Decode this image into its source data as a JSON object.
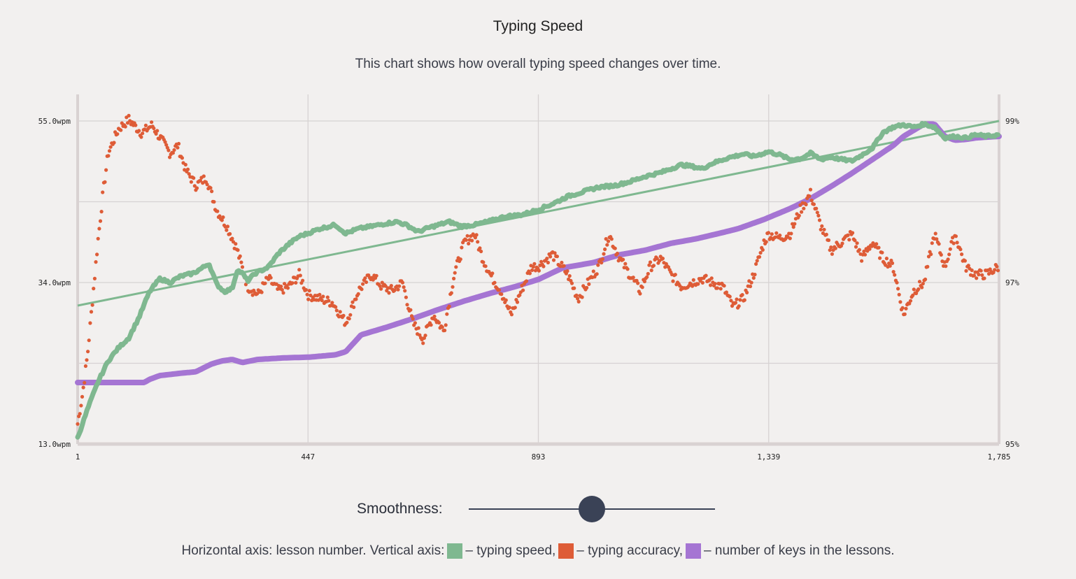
{
  "header": {
    "title": "Typing Speed",
    "subtitle": "This chart shows how overall typing speed changes over time."
  },
  "controls": {
    "smoothness_label": "Smoothness:",
    "smoothness_value": 0.5
  },
  "legend": {
    "prefix": "Horizontal axis: lesson number. Vertical axis:",
    "speed": "– typing speed,",
    "accuracy": "– typing accuracy,",
    "keys": "– number of keys in the lessons."
  },
  "chart_data": {
    "type": "line",
    "x": {
      "min": 1,
      "max": 1785,
      "ticks": [
        "1",
        "447",
        "893",
        "1,339",
        "1,785"
      ],
      "tick_values": [
        1,
        447,
        893,
        1339,
        1785
      ]
    },
    "y_left": {
      "min": 13.0,
      "max": 55.0,
      "ticks": [
        "13.0wpm",
        "34.0wpm",
        "55.0wpm"
      ],
      "tick_values": [
        13,
        34,
        55
      ]
    },
    "y_right": {
      "min": 95,
      "max": 99,
      "ticks": [
        "95%",
        "97%",
        "99%"
      ],
      "tick_values": [
        95,
        97,
        99
      ]
    },
    "grid": true,
    "colors": {
      "speed": "#7fb890",
      "accuracy": "#de5c37",
      "keys": "#a575d3",
      "trend": "#7fb890"
    },
    "series": [
      {
        "key": "speed",
        "axis": "left",
        "points": [
          [
            1,
            13.8
          ],
          [
            20,
            17.5
          ],
          [
            40,
            21
          ],
          [
            60,
            23.8
          ],
          [
            80,
            25.5
          ],
          [
            100,
            26.8
          ],
          [
            120,
            29.5
          ],
          [
            140,
            32.8
          ],
          [
            160,
            34.5
          ],
          [
            180,
            34.0
          ],
          [
            200,
            34.8
          ],
          [
            225,
            35.2
          ],
          [
            245,
            36.0
          ],
          [
            255,
            36.5
          ],
          [
            270,
            33.8
          ],
          [
            285,
            32.8
          ],
          [
            300,
            33.2
          ],
          [
            310,
            35.6
          ],
          [
            320,
            35.2
          ],
          [
            330,
            34.2
          ],
          [
            345,
            35.2
          ],
          [
            370,
            36.0
          ],
          [
            390,
            37.8
          ],
          [
            410,
            39.0
          ],
          [
            430,
            40.0
          ],
          [
            447,
            40.4
          ],
          [
            470,
            41.0
          ],
          [
            500,
            41.5
          ],
          [
            520,
            40.4
          ],
          [
            545,
            41.0
          ],
          [
            570,
            41.3
          ],
          [
            600,
            41.7
          ],
          [
            620,
            41.9
          ],
          [
            640,
            41.4
          ],
          [
            660,
            40.6
          ],
          [
            680,
            41.1
          ],
          [
            700,
            41.5
          ],
          [
            720,
            41.9
          ],
          [
            745,
            41.3
          ],
          [
            770,
            41.5
          ],
          [
            800,
            42.0
          ],
          [
            830,
            42.6
          ],
          [
            860,
            42.8
          ],
          [
            880,
            43.2
          ],
          [
            893,
            43.5
          ],
          [
            920,
            44.2
          ],
          [
            950,
            45.2
          ],
          [
            980,
            45.8
          ],
          [
            1010,
            46.4
          ],
          [
            1040,
            46.6
          ],
          [
            1070,
            47.1
          ],
          [
            1100,
            47.8
          ],
          [
            1130,
            48.3
          ],
          [
            1150,
            48.8
          ],
          [
            1170,
            49.3
          ],
          [
            1190,
            49.1
          ],
          [
            1210,
            48.8
          ],
          [
            1230,
            49.5
          ],
          [
            1260,
            50.2
          ],
          [
            1290,
            50.7
          ],
          [
            1310,
            50.4
          ],
          [
            1339,
            51.0
          ],
          [
            1360,
            50.6
          ],
          [
            1380,
            50.0
          ],
          [
            1400,
            50.1
          ],
          [
            1420,
            50.8
          ],
          [
            1440,
            50.0
          ],
          [
            1460,
            50.3
          ],
          [
            1480,
            50.0
          ],
          [
            1500,
            49.8
          ],
          [
            1520,
            50.6
          ],
          [
            1540,
            51.5
          ],
          [
            1560,
            53.5
          ],
          [
            1580,
            54.2
          ],
          [
            1600,
            54.5
          ],
          [
            1620,
            54.2
          ],
          [
            1640,
            54.6
          ],
          [
            1660,
            54.2
          ],
          [
            1680,
            52.8
          ],
          [
            1700,
            53.0
          ],
          [
            1720,
            52.8
          ],
          [
            1740,
            53.2
          ],
          [
            1760,
            53.0
          ],
          [
            1785,
            53.2
          ]
        ]
      },
      {
        "key": "accuracy",
        "axis": "right",
        "points": [
          [
            1,
            95.25
          ],
          [
            10,
            95.6
          ],
          [
            20,
            96.1
          ],
          [
            30,
            96.8
          ],
          [
            40,
            97.5
          ],
          [
            50,
            98.1
          ],
          [
            60,
            98.6
          ],
          [
            80,
            98.9
          ],
          [
            100,
            99.02
          ],
          [
            110,
            98.95
          ],
          [
            125,
            98.85
          ],
          [
            145,
            98.95
          ],
          [
            165,
            98.75
          ],
          [
            180,
            98.6
          ],
          [
            195,
            98.7
          ],
          [
            210,
            98.4
          ],
          [
            230,
            98.2
          ],
          [
            250,
            98.3
          ],
          [
            270,
            97.9
          ],
          [
            290,
            97.7
          ],
          [
            310,
            97.4
          ],
          [
            330,
            96.95
          ],
          [
            350,
            96.85
          ],
          [
            370,
            97.05
          ],
          [
            390,
            96.9
          ],
          [
            410,
            96.95
          ],
          [
            430,
            97.1
          ],
          [
            447,
            96.85
          ],
          [
            470,
            96.8
          ],
          [
            495,
            96.75
          ],
          [
            520,
            96.5
          ],
          [
            545,
            96.9
          ],
          [
            570,
            97.1
          ],
          [
            590,
            96.95
          ],
          [
            610,
            96.9
          ],
          [
            630,
            97.0
          ],
          [
            650,
            96.5
          ],
          [
            670,
            96.3
          ],
          [
            690,
            96.6
          ],
          [
            710,
            96.4
          ],
          [
            730,
            97.1
          ],
          [
            750,
            97.5
          ],
          [
            770,
            97.6
          ],
          [
            785,
            97.3
          ],
          [
            800,
            97.1
          ],
          [
            820,
            96.9
          ],
          [
            840,
            96.6
          ],
          [
            860,
            96.9
          ],
          [
            880,
            97.2
          ],
          [
            893,
            97.2
          ],
          [
            920,
            97.35
          ],
          [
            950,
            97.1
          ],
          [
            970,
            96.8
          ],
          [
            990,
            97.0
          ],
          [
            1010,
            97.2
          ],
          [
            1030,
            97.6
          ],
          [
            1050,
            97.3
          ],
          [
            1070,
            97.1
          ],
          [
            1090,
            96.9
          ],
          [
            1110,
            97.2
          ],
          [
            1130,
            97.3
          ],
          [
            1150,
            97.1
          ],
          [
            1170,
            96.95
          ],
          [
            1190,
            97.0
          ],
          [
            1210,
            97.05
          ],
          [
            1230,
            97.0
          ],
          [
            1250,
            96.95
          ],
          [
            1270,
            96.7
          ],
          [
            1290,
            96.8
          ],
          [
            1310,
            97.1
          ],
          [
            1330,
            97.5
          ],
          [
            1339,
            97.6
          ],
          [
            1360,
            97.55
          ],
          [
            1380,
            97.6
          ],
          [
            1400,
            97.9
          ],
          [
            1420,
            98.1
          ],
          [
            1440,
            97.7
          ],
          [
            1460,
            97.4
          ],
          [
            1480,
            97.5
          ],
          [
            1500,
            97.6
          ],
          [
            1520,
            97.3
          ],
          [
            1540,
            97.5
          ],
          [
            1560,
            97.3
          ],
          [
            1580,
            97.2
          ],
          [
            1600,
            96.6
          ],
          [
            1620,
            96.9
          ],
          [
            1640,
            97.0
          ],
          [
            1660,
            97.6
          ],
          [
            1680,
            97.2
          ],
          [
            1700,
            97.6
          ],
          [
            1720,
            97.2
          ],
          [
            1740,
            97.1
          ],
          [
            1760,
            97.1
          ],
          [
            1785,
            97.2
          ]
        ]
      },
      {
        "key": "keys",
        "axis": "left",
        "points": [
          [
            1,
            21.0
          ],
          [
            60,
            21.0
          ],
          [
            130,
            21.0
          ],
          [
            140,
            21.4
          ],
          [
            160,
            21.9
          ],
          [
            200,
            22.2
          ],
          [
            230,
            22.4
          ],
          [
            260,
            23.4
          ],
          [
            280,
            23.8
          ],
          [
            300,
            24.0
          ],
          [
            320,
            23.6
          ],
          [
            350,
            24.0
          ],
          [
            400,
            24.2
          ],
          [
            450,
            24.3
          ],
          [
            500,
            24.6
          ],
          [
            520,
            25.0
          ],
          [
            550,
            27.2
          ],
          [
            600,
            28.2
          ],
          [
            650,
            29.3
          ],
          [
            700,
            30.5
          ],
          [
            750,
            31.6
          ],
          [
            800,
            32.6
          ],
          [
            850,
            33.5
          ],
          [
            893,
            34.4
          ],
          [
            940,
            35.9
          ],
          [
            1000,
            36.6
          ],
          [
            1050,
            37.6
          ],
          [
            1100,
            38.2
          ],
          [
            1150,
            39.1
          ],
          [
            1200,
            39.7
          ],
          [
            1250,
            40.5
          ],
          [
            1280,
            41.0
          ],
          [
            1330,
            42.2
          ],
          [
            1380,
            43.6
          ],
          [
            1420,
            44.9
          ],
          [
            1460,
            46.5
          ],
          [
            1500,
            48.2
          ],
          [
            1540,
            50.0
          ],
          [
            1580,
            51.8
          ],
          [
            1600,
            53.0
          ],
          [
            1620,
            53.8
          ],
          [
            1640,
            54.6
          ],
          [
            1660,
            54.6
          ],
          [
            1680,
            53.0
          ],
          [
            1700,
            52.5
          ],
          [
            1720,
            52.6
          ],
          [
            1740,
            52.8
          ],
          [
            1760,
            52.9
          ],
          [
            1785,
            53.0
          ]
        ]
      },
      {
        "key": "trend",
        "axis": "left",
        "points": [
          [
            1,
            31.0
          ],
          [
            1785,
            55.0
          ]
        ]
      }
    ]
  }
}
